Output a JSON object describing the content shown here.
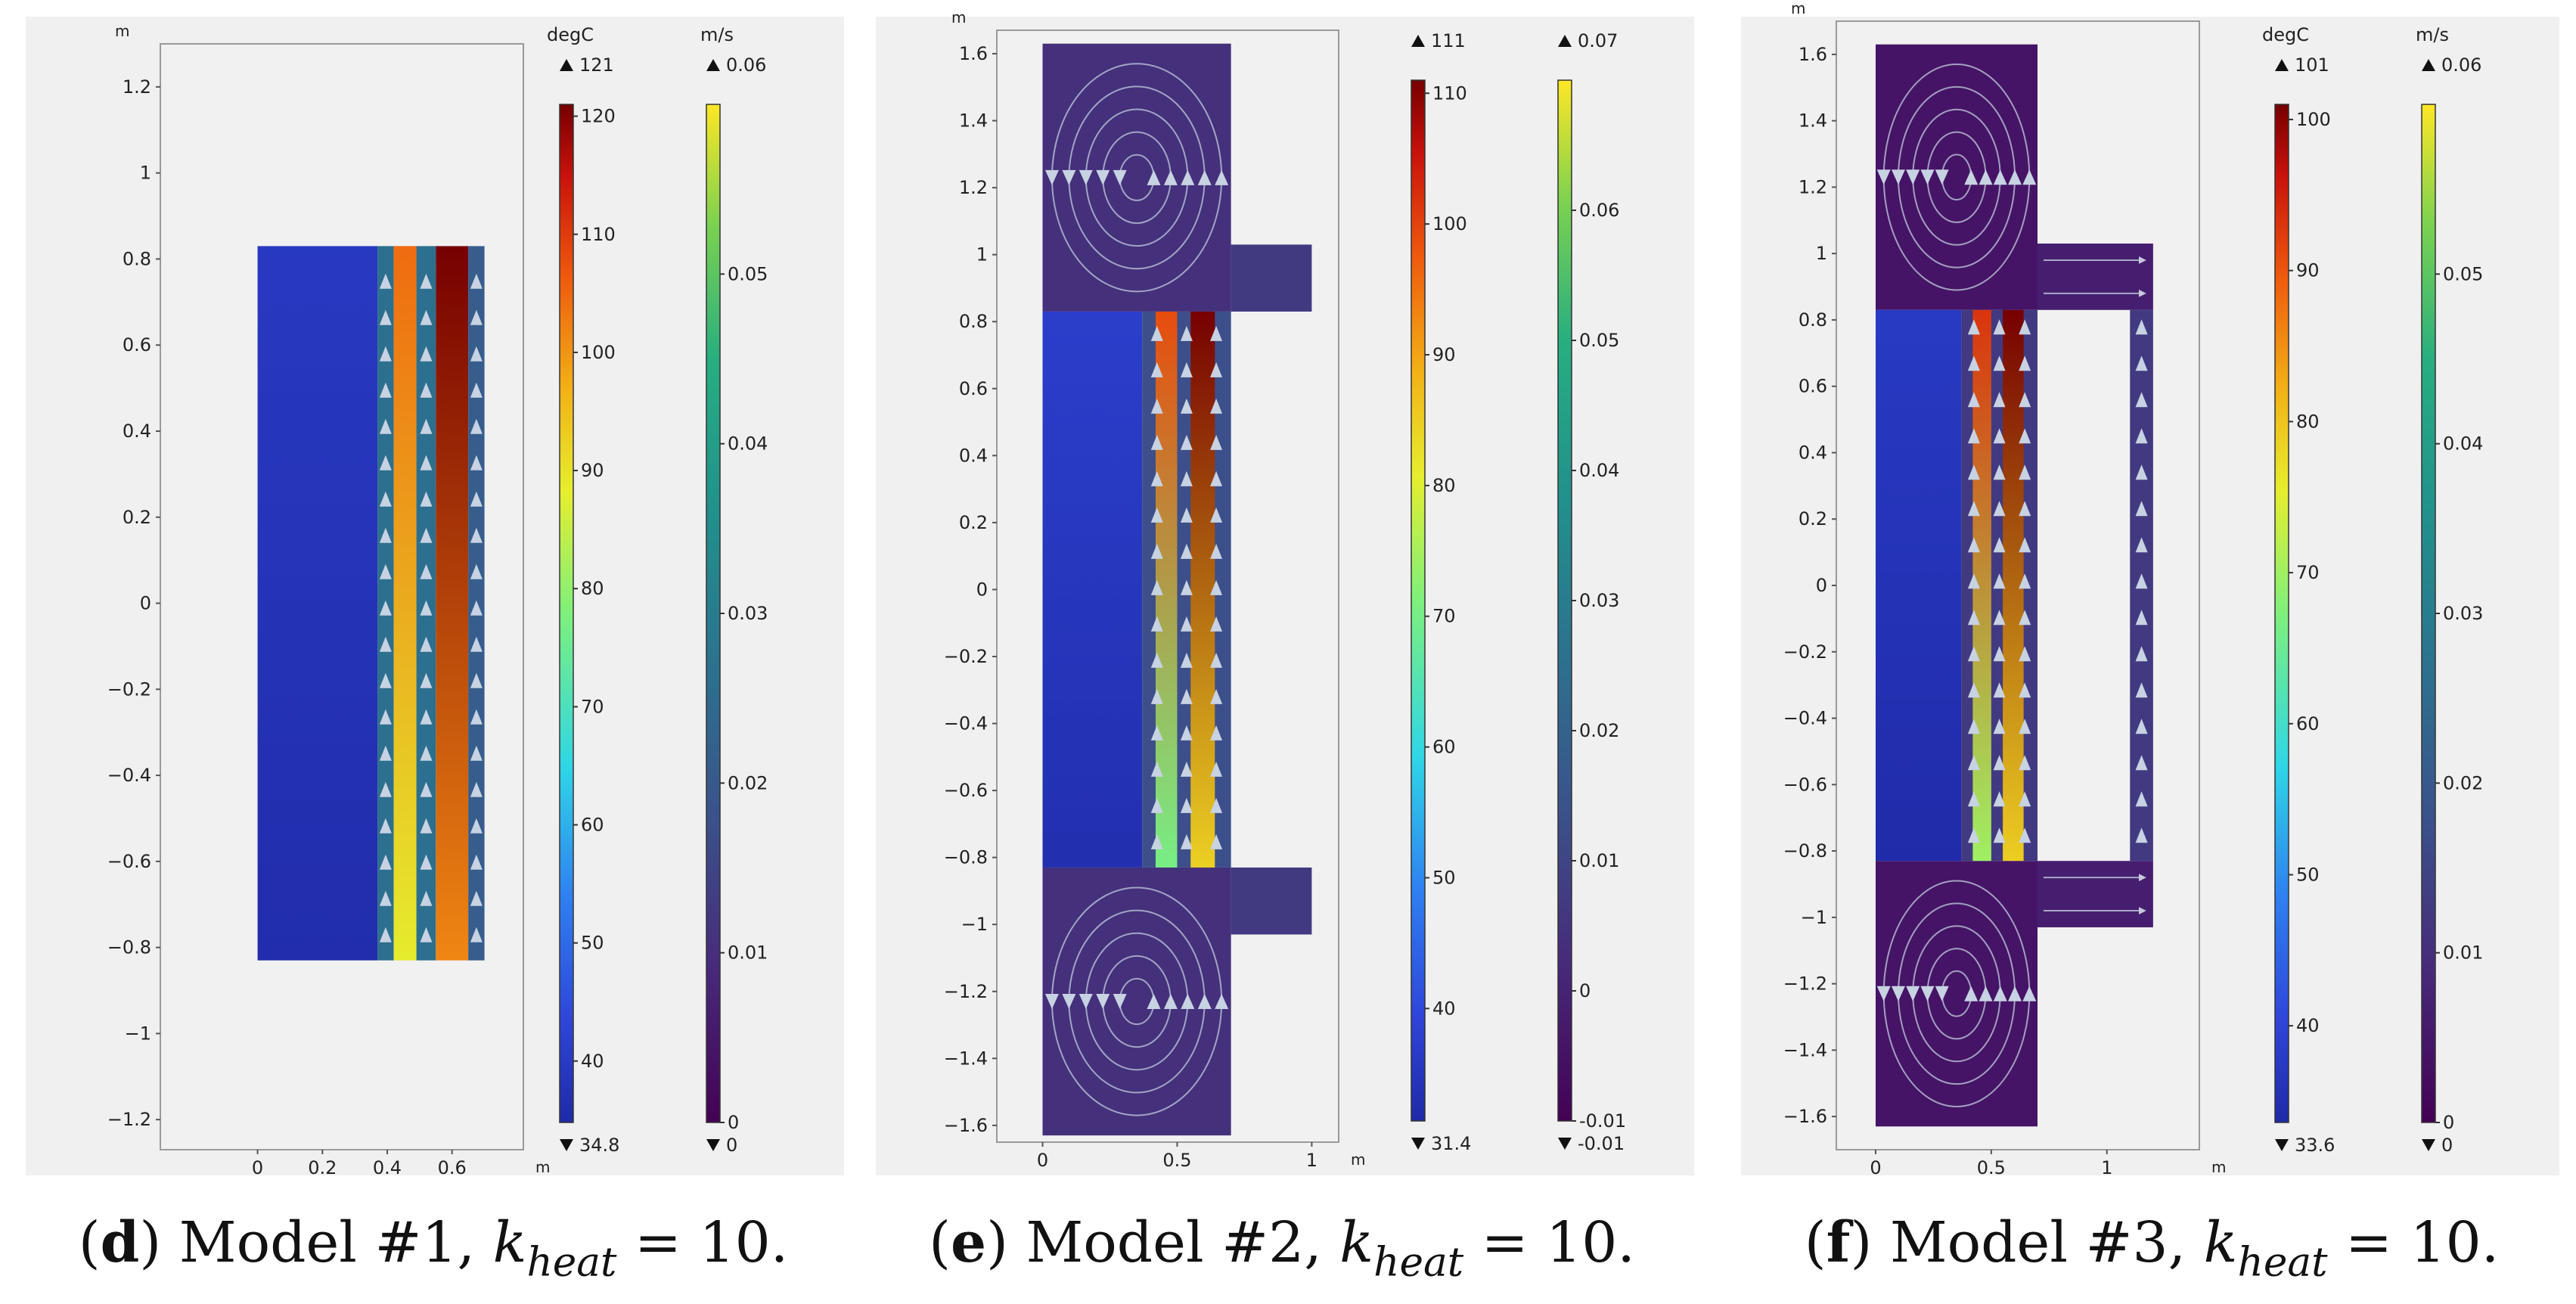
{
  "chart_data": [
    {
      "type": "heatmap",
      "caption": {
        "letter": "d",
        "model": "Model #1,",
        "k_symbol": "k",
        "k_sub": "heat",
        "k_value": "= 10."
      },
      "xlabel": "m",
      "ylabel": "m",
      "xlim": [
        -0.3,
        0.82
      ],
      "ylim": [
        -1.27,
        1.3
      ],
      "xticks": [
        0,
        0.2,
        0.4,
        0.6
      ],
      "xtick_labels": [
        "0",
        "0.2",
        "0.4",
        "0.6"
      ],
      "yticks": [
        -1.2,
        -1,
        -0.8,
        -0.6,
        -0.4,
        -0.2,
        0,
        0.2,
        0.4,
        0.6,
        0.8,
        1,
        1.2
      ],
      "ytick_labels": [
        "−1.2",
        "−1",
        "−0.8",
        "−0.6",
        "−0.4",
        "−0.2",
        "0",
        "0.2",
        "0.4",
        "0.6",
        "0.8",
        "1",
        "1.2"
      ],
      "temperature": {
        "unit": "degC",
        "max": "121",
        "min": "34.8",
        "range": [
          34.8,
          121
        ],
        "ticks": [
          40,
          50,
          60,
          70,
          80,
          90,
          100,
          110,
          120
        ],
        "tick_labels": [
          "40",
          "50",
          "60",
          "70",
          "80",
          "90",
          "100",
          "110",
          "120"
        ]
      },
      "velocity": {
        "unit": "m/s",
        "max": "0.06",
        "min": "0",
        "range": [
          0,
          0.06
        ],
        "ticks": [
          0,
          0.01,
          0.02,
          0.03,
          0.04,
          0.05
        ],
        "tick_labels": [
          "0",
          "0.01",
          "0.02",
          "0.03",
          "0.04",
          "0.05"
        ]
      },
      "regions": [
        {
          "kind": "solid",
          "x": [
            0,
            0.37
          ],
          "y": [
            -0.83,
            0.83
          ],
          "temperature": [
            36,
            40
          ]
        },
        {
          "kind": "fluid",
          "x": [
            0.37,
            0.42
          ],
          "y": [
            -0.83,
            0.83
          ],
          "velocity": 0.025
        },
        {
          "kind": "heater",
          "x": [
            0.42,
            0.49
          ],
          "y": [
            -0.83,
            0.83
          ],
          "temperature": [
            83,
            100
          ]
        },
        {
          "kind": "fluid",
          "x": [
            0.49,
            0.55
          ],
          "y": [
            -0.83,
            0.83
          ],
          "velocity": 0.025
        },
        {
          "kind": "heater",
          "x": [
            0.55,
            0.65
          ],
          "y": [
            -0.83,
            0.83
          ],
          "temperature": [
            97,
            121
          ]
        },
        {
          "kind": "fluid",
          "x": [
            0.65,
            0.7
          ],
          "y": [
            -0.83,
            0.83
          ],
          "velocity": 0.02
        }
      ]
    },
    {
      "type": "heatmap",
      "caption": {
        "letter": "e",
        "model": "Model #2,",
        "k_symbol": "k",
        "k_sub": "heat",
        "k_value": "= 10."
      },
      "xlabel": "m",
      "ylabel": "m",
      "xlim": [
        -0.17,
        1.1
      ],
      "ylim": [
        -1.65,
        1.67
      ],
      "xticks": [
        0,
        0.5,
        1
      ],
      "xtick_labels": [
        "0",
        "0.5",
        "1"
      ],
      "yticks": [
        -1.6,
        -1.4,
        -1.2,
        -1,
        -0.8,
        -0.6,
        -0.4,
        -0.2,
        0,
        0.2,
        0.4,
        0.6,
        0.8,
        1,
        1.2,
        1.4,
        1.6
      ],
      "ytick_labels": [
        "−1.6",
        "−1.4",
        "−1.2",
        "−1",
        "−0.8",
        "−0.6",
        "−0.4",
        "−0.2",
        "0",
        "0.2",
        "0.4",
        "0.6",
        "0.8",
        "1",
        "1.2",
        "1.4",
        "1.6"
      ],
      "temperature": {
        "unit": "",
        "max": "111",
        "min": "31.4",
        "range": [
          31.4,
          111
        ],
        "ticks": [
          40,
          50,
          60,
          70,
          80,
          90,
          100,
          110
        ],
        "tick_labels": [
          "40",
          "50",
          "60",
          "70",
          "80",
          "90",
          "100",
          "110"
        ]
      },
      "velocity": {
        "unit": "",
        "max": "0.07",
        "min": "-0.01",
        "range": [
          -0.01,
          0.07
        ],
        "ticks": [
          -0.01,
          0,
          0.01,
          0.02,
          0.03,
          0.04,
          0.05,
          0.06
        ],
        "tick_labels": [
          "-0.01",
          "0",
          "0.01",
          "0.02",
          "0.03",
          "0.04",
          "0.05",
          "0.06"
        ]
      },
      "regions": [
        {
          "kind": "fluid",
          "x": [
            0,
            0.7
          ],
          "y": [
            0.83,
            1.63
          ],
          "velocity": 0.003
        },
        {
          "kind": "fluid",
          "x": [
            0.7,
            1
          ],
          "y": [
            0.83,
            1.03
          ],
          "velocity": 0.006
        },
        {
          "kind": "fluid",
          "x": [
            0,
            0.7
          ],
          "y": [
            -1.63,
            -0.83
          ],
          "velocity": 0.003
        },
        {
          "kind": "fluid",
          "x": [
            0.7,
            1
          ],
          "y": [
            -1.03,
            -0.83
          ],
          "velocity": 0.006
        },
        {
          "kind": "solid",
          "x": [
            0,
            0.37
          ],
          "y": [
            -0.83,
            0.83
          ],
          "temperature": [
            33,
            38
          ]
        },
        {
          "kind": "fluid",
          "x": [
            0.37,
            0.7
          ],
          "y": [
            -0.83,
            0.83
          ],
          "velocity": 0.012
        },
        {
          "kind": "heater",
          "x": [
            0.42,
            0.5
          ],
          "y": [
            -0.83,
            0.83
          ],
          "temperature": [
            66,
            95
          ]
        },
        {
          "kind": "heater",
          "x": [
            0.55,
            0.64
          ],
          "y": [
            -0.83,
            0.83
          ],
          "temperature": [
            80,
            111
          ]
        }
      ]
    },
    {
      "type": "heatmap",
      "caption": {
        "letter": "f",
        "model": "Model #3,",
        "k_symbol": "k",
        "k_sub": "heat",
        "k_value": "= 10."
      },
      "xlabel": "m",
      "ylabel": "m",
      "xlim": [
        -0.17,
        1.4
      ],
      "ylim": [
        -1.7,
        1.7
      ],
      "xticks": [
        0,
        0.5,
        1
      ],
      "xtick_labels": [
        "0",
        "0.5",
        "1"
      ],
      "yticks": [
        -1.6,
        -1.4,
        -1.2,
        -1,
        -0.8,
        -0.6,
        -0.4,
        -0.2,
        0,
        0.2,
        0.4,
        0.6,
        0.8,
        1,
        1.2,
        1.4,
        1.6
      ],
      "ytick_labels": [
        "−1.6",
        "−1.4",
        "−1.2",
        "−1",
        "−0.8",
        "−0.6",
        "−0.4",
        "−0.2",
        "0",
        "0.2",
        "0.4",
        "0.6",
        "0.8",
        "1",
        "1.2",
        "1.4",
        "1.6"
      ],
      "temperature": {
        "unit": "degC",
        "max": "101",
        "min": "33.6",
        "range": [
          33.6,
          101
        ],
        "ticks": [
          40,
          50,
          60,
          70,
          80,
          90,
          100
        ],
        "tick_labels": [
          "40",
          "50",
          "60",
          "70",
          "80",
          "90",
          "100"
        ]
      },
      "velocity": {
        "unit": "m/s",
        "max": "0.06",
        "min": "0",
        "range": [
          0,
          0.06
        ],
        "ticks": [
          0,
          0.01,
          0.02,
          0.03,
          0.04,
          0.05
        ],
        "tick_labels": [
          "0",
          "0.01",
          "0.02",
          "0.03",
          "0.04",
          "0.05"
        ]
      },
      "regions": [
        {
          "kind": "fluid",
          "x": [
            0,
            0.7
          ],
          "y": [
            0.83,
            1.63
          ],
          "velocity": 0.004
        },
        {
          "kind": "fluid",
          "x": [
            0.7,
            1.2
          ],
          "y": [
            0.83,
            1.03
          ],
          "velocity": 0.006
        },
        {
          "kind": "fluid",
          "x": [
            0,
            0.7
          ],
          "y": [
            -1.63,
            -0.83
          ],
          "velocity": 0.004
        },
        {
          "kind": "fluid",
          "x": [
            0.7,
            1.2
          ],
          "y": [
            -1.03,
            -0.83
          ],
          "velocity": 0.006
        },
        {
          "kind": "fluid",
          "x": [
            1.1,
            1.2
          ],
          "y": [
            -0.83,
            0.83
          ],
          "velocity": 0.012
        },
        {
          "kind": "solid",
          "x": [
            0,
            0.37
          ],
          "y": [
            -0.83,
            0.83
          ],
          "temperature": [
            34,
            38
          ]
        },
        {
          "kind": "fluid",
          "x": [
            0.37,
            0.7
          ],
          "y": [
            -0.83,
            0.83
          ],
          "velocity": 0.012
        },
        {
          "kind": "heater",
          "x": [
            0.42,
            0.5
          ],
          "y": [
            -0.83,
            0.83
          ],
          "temperature": [
            66,
            90
          ]
        },
        {
          "kind": "heater",
          "x": [
            0.55,
            0.64
          ],
          "y": [
            -0.83,
            0.83
          ],
          "temperature": [
            75,
            101
          ]
        }
      ]
    }
  ]
}
